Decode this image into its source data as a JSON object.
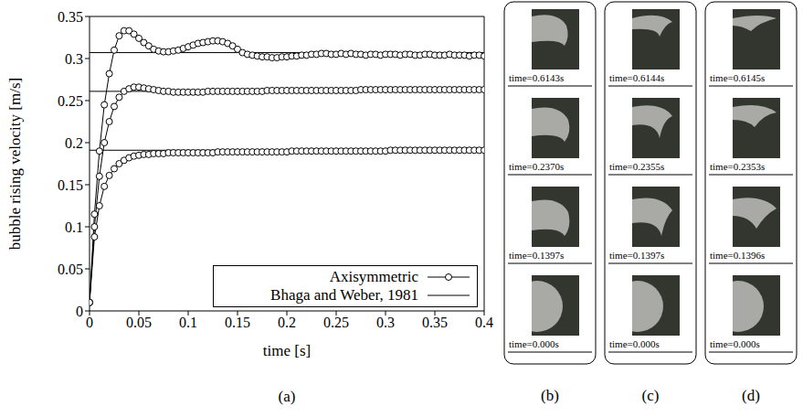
{
  "chart_data": {
    "type": "line",
    "panel_label": "(a)",
    "x_label": "time [s]",
    "y_label": "bubble rising velocity [m/s]",
    "xlim": [
      0,
      0.4
    ],
    "xticks": [
      0,
      0.05,
      0.1,
      0.15,
      0.2,
      0.25,
      0.3,
      0.35,
      0.4
    ],
    "ylim": [
      0,
      0.35
    ],
    "yticks": [
      0,
      0.05,
      0.1,
      0.15,
      0.2,
      0.25,
      0.3,
      0.35
    ],
    "legend": "lower right",
    "grid": false,
    "x": [
      0,
      0.005,
      0.01,
      0.015,
      0.02,
      0.025,
      0.03,
      0.035,
      0.04,
      0.045,
      0.05,
      0.055,
      0.06,
      0.065,
      0.07,
      0.075,
      0.08,
      0.085,
      0.09,
      0.095,
      0.1,
      0.105,
      0.11,
      0.115,
      0.12,
      0.125,
      0.13,
      0.135,
      0.14,
      0.145,
      0.15,
      0.155,
      0.16,
      0.165,
      0.17,
      0.175,
      0.18,
      0.185,
      0.19,
      0.195,
      0.2,
      0.205,
      0.21,
      0.215,
      0.22,
      0.225,
      0.23,
      0.235,
      0.24,
      0.245,
      0.25,
      0.255,
      0.26,
      0.265,
      0.27,
      0.275,
      0.28,
      0.285,
      0.29,
      0.295,
      0.3,
      0.305,
      0.31,
      0.315,
      0.32,
      0.325,
      0.33,
      0.335,
      0.34,
      0.345,
      0.35,
      0.355,
      0.36,
      0.365,
      0.37,
      0.375,
      0.38,
      0.385,
      0.39,
      0.395,
      0.4
    ],
    "series": [
      {
        "name": "Axisymmetric",
        "color": "#000000",
        "marker": "circle",
        "line_style": "solid",
        "values": [
          0.01,
          0.115,
          0.19,
          0.245,
          0.282,
          0.31,
          0.327,
          0.333,
          0.333,
          0.329,
          0.324,
          0.319,
          0.315,
          0.311,
          0.309,
          0.308,
          0.308,
          0.309,
          0.31,
          0.312,
          0.314,
          0.316,
          0.318,
          0.319,
          0.32,
          0.321,
          0.321,
          0.32,
          0.318,
          0.315,
          0.311,
          0.307,
          0.305,
          0.304,
          0.303,
          0.302,
          0.302,
          0.301,
          0.301,
          0.302,
          0.302,
          0.303,
          0.303,
          0.304,
          0.304,
          0.305,
          0.305,
          0.306,
          0.306,
          0.305,
          0.305,
          0.306,
          0.305,
          0.306,
          0.305,
          0.305,
          0.304,
          0.305,
          0.305,
          0.304,
          0.305,
          0.305,
          0.305,
          0.304,
          0.305,
          0.305,
          0.304,
          0.304,
          0.305,
          0.305,
          0.304,
          0.304,
          0.304,
          0.305,
          0.304,
          0.304,
          0.304,
          0.303,
          0.304,
          0.304,
          0.303
        ]
      },
      {
        "name": "Axisymmetric",
        "color": "#000000",
        "marker": "circle",
        "line_style": "solid",
        "values": [
          0.01,
          0.1,
          0.16,
          0.2,
          0.225,
          0.243,
          0.254,
          0.261,
          0.264,
          0.266,
          0.266,
          0.265,
          0.264,
          0.263,
          0.262,
          0.261,
          0.261,
          0.26,
          0.26,
          0.26,
          0.26,
          0.26,
          0.26,
          0.26,
          0.261,
          0.261,
          0.261,
          0.261,
          0.261,
          0.261,
          0.261,
          0.261,
          0.261,
          0.261,
          0.261,
          0.261,
          0.262,
          0.262,
          0.262,
          0.262,
          0.262,
          0.262,
          0.262,
          0.262,
          0.262,
          0.262,
          0.262,
          0.262,
          0.262,
          0.262,
          0.262,
          0.262,
          0.262,
          0.262,
          0.262,
          0.263,
          0.263,
          0.263,
          0.263,
          0.263,
          0.263,
          0.263,
          0.263,
          0.263,
          0.263,
          0.263,
          0.263,
          0.263,
          0.263,
          0.263,
          0.263,
          0.263,
          0.263,
          0.263,
          0.263,
          0.263,
          0.263,
          0.263,
          0.263,
          0.263,
          0.263
        ]
      },
      {
        "name": "Axisymmetric",
        "color": "#000000",
        "marker": "circle",
        "line_style": "solid",
        "values": [
          0.01,
          0.088,
          0.125,
          0.148,
          0.161,
          0.169,
          0.175,
          0.179,
          0.182,
          0.184,
          0.185,
          0.186,
          0.186,
          0.187,
          0.187,
          0.187,
          0.188,
          0.188,
          0.188,
          0.188,
          0.188,
          0.188,
          0.188,
          0.188,
          0.188,
          0.188,
          0.189,
          0.189,
          0.189,
          0.189,
          0.189,
          0.189,
          0.189,
          0.189,
          0.189,
          0.189,
          0.189,
          0.189,
          0.189,
          0.189,
          0.189,
          0.19,
          0.19,
          0.19,
          0.19,
          0.19,
          0.19,
          0.19,
          0.19,
          0.19,
          0.19,
          0.19,
          0.19,
          0.19,
          0.19,
          0.19,
          0.19,
          0.19,
          0.19,
          0.19,
          0.19,
          0.191,
          0.191,
          0.191,
          0.191,
          0.191,
          0.191,
          0.191,
          0.191,
          0.191,
          0.191,
          0.191,
          0.191,
          0.191,
          0.191,
          0.191,
          0.191,
          0.191,
          0.191,
          0.191,
          0.191
        ]
      },
      {
        "name": "Bhaga and Weber, 1981",
        "color": "#000000",
        "marker": "none",
        "line_style": "solid",
        "x": [
          0,
          0.4
        ],
        "values": [
          0.307,
          0.307
        ]
      },
      {
        "name": "Bhaga and Weber, 1981",
        "color": "#000000",
        "marker": "none",
        "line_style": "solid",
        "x": [
          0,
          0.4
        ],
        "values": [
          0.261,
          0.261
        ]
      },
      {
        "name": "Bhaga and Weber, 1981",
        "color": "#000000",
        "marker": "none",
        "line_style": "solid",
        "x": [
          0,
          0.4
        ],
        "values": [
          0.191,
          0.191
        ]
      }
    ]
  },
  "panels": [
    {
      "label": "(b)",
      "frames": [
        "time=0.6143s",
        "time=0.2370s",
        "time=0.1397s",
        "time=0.000s"
      ]
    },
    {
      "label": "(c)",
      "frames": [
        "time=0.6144s",
        "time=0.2355s",
        "time=0.1397s",
        "time=0.000s"
      ]
    },
    {
      "label": "(d)",
      "frames": [
        "time=0.6145s",
        "time=0.2353s",
        "time=0.1396s",
        "time=0.000s"
      ]
    }
  ]
}
